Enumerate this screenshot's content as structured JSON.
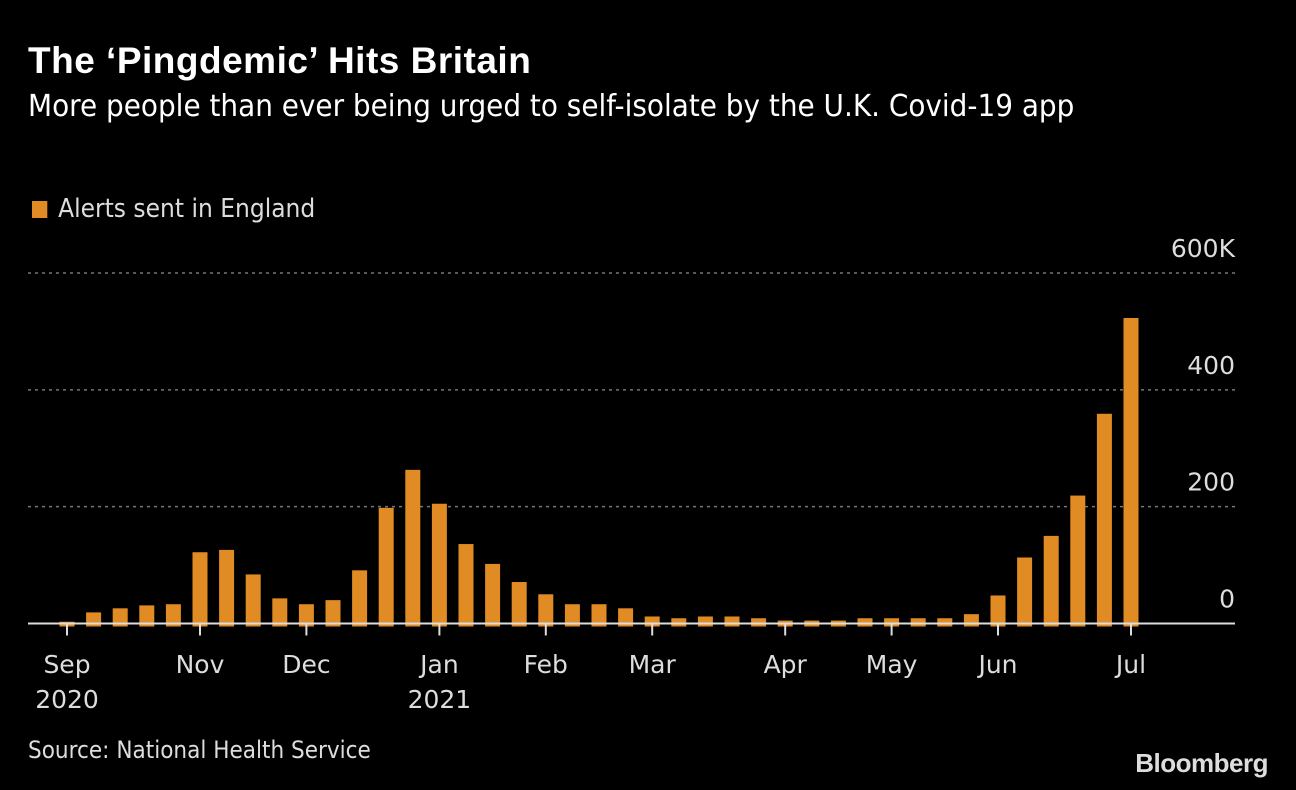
{
  "title": "The ‘Pingdemic’ Hits Britain",
  "subtitle": "More people than ever being urged to self-isolate by the U.K. Covid-19 app",
  "source": "Source: National Health Service",
  "logo": "Bloomberg",
  "colors": {
    "bar": "#E08B24",
    "background": "#000000",
    "grid": "#777777"
  },
  "chart_data": {
    "type": "bar",
    "title": "The ‘Pingdemic’ Hits Britain",
    "legend": [
      {
        "label": "Alerts sent in England",
        "color": "#E08B24"
      }
    ],
    "legend_position": "top-left",
    "unit": "thousands",
    "ylim": [
      0,
      600
    ],
    "yticks": [
      {
        "value": 0,
        "label": "0"
      },
      {
        "value": 200,
        "label": "200"
      },
      {
        "value": 400,
        "label": "400"
      },
      {
        "value": 600,
        "label": "600K"
      }
    ],
    "grid": true,
    "xticks": [
      {
        "index": 0,
        "label": "Sep",
        "sublabel": "2020"
      },
      {
        "index": 5,
        "label": "Nov"
      },
      {
        "index": 9,
        "label": "Dec"
      },
      {
        "index": 14,
        "label": "Jan",
        "sublabel": "2021"
      },
      {
        "index": 18,
        "label": "Feb"
      },
      {
        "index": 22,
        "label": "Mar"
      },
      {
        "index": 27,
        "label": "Apr"
      },
      {
        "index": 31,
        "label": "May"
      },
      {
        "index": 35,
        "label": "Jun"
      },
      {
        "index": 40,
        "label": "Jul"
      }
    ],
    "series": [
      {
        "name": "Alerts sent in England",
        "values": [
          3,
          19,
          26,
          31,
          33,
          122,
          126,
          84,
          43,
          33,
          40,
          91,
          198,
          263,
          205,
          136,
          102,
          71,
          50,
          33,
          33,
          26,
          12,
          9,
          12,
          12,
          9,
          5,
          5,
          5,
          9,
          9,
          9,
          9,
          16,
          48,
          113,
          150,
          219,
          359,
          523
        ]
      }
    ]
  }
}
